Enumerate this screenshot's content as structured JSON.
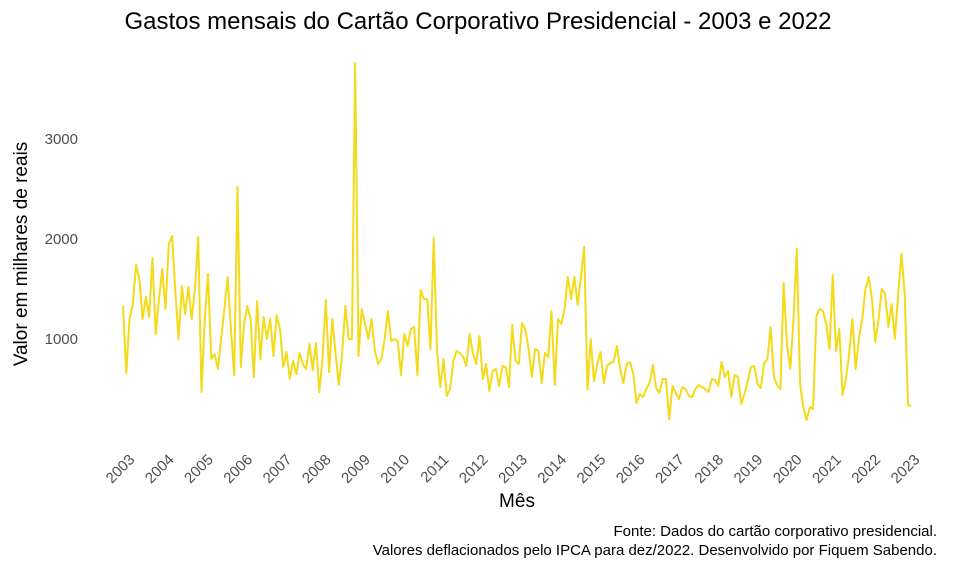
{
  "chart_data": {
    "type": "line",
    "title": "Gastos mensais do Cartão Corporativo Presidencial - 2003 e 2022",
    "xlabel": "Mês",
    "ylabel": "Valor em milhares de reais",
    "caption": [
      "Fonte: Dados do cartão corporativo presidencial.",
      "Valores deflacionados pelo IPCA para dez/2022. Desenvolvido por Fiquem Sabendo."
    ],
    "x_start": 2003,
    "x_step_months": 1,
    "xlim": [
      2003,
      2023
    ],
    "ylim": [
      0,
      3800
    ],
    "x_ticks": [
      "2003",
      "2004",
      "2005",
      "2006",
      "2007",
      "2008",
      "2009",
      "2010",
      "2011",
      "2012",
      "2013",
      "2014",
      "2015",
      "2016",
      "2017",
      "2018",
      "2019",
      "2020",
      "2021",
      "2022",
      "2023"
    ],
    "y_ticks": [
      "1000",
      "2000",
      "3000"
    ],
    "grid": false,
    "line_color": "#F5DA1A",
    "values": [
      1330,
      660,
      1200,
      1350,
      1740,
      1600,
      1200,
      1420,
      1220,
      1810,
      1050,
      1400,
      1700,
      1300,
      1950,
      2030,
      1480,
      1000,
      1530,
      1250,
      1520,
      1200,
      1500,
      2020,
      470,
      1200,
      1650,
      800,
      850,
      700,
      1000,
      1300,
      1620,
      1100,
      640,
      2520,
      720,
      1150,
      1330,
      1200,
      620,
      1380,
      800,
      1220,
      1000,
      1200,
      830,
      1240,
      1100,
      720,
      870,
      600,
      780,
      650,
      860,
      750,
      700,
      950,
      690,
      960,
      470,
      800,
      1390,
      670,
      1200,
      850,
      540,
      850,
      1330,
      1000,
      1000,
      3760,
      830,
      1300,
      1150,
      1000,
      1200,
      880,
      750,
      800,
      1000,
      1280,
      980,
      1000,
      980,
      640,
      1050,
      930,
      1100,
      1120,
      640,
      1490,
      1400,
      1400,
      900,
      2010,
      880,
      520,
      800,
      430,
      500,
      780,
      880,
      860,
      820,
      730,
      1050,
      850,
      750,
      1030,
      600,
      750,
      480,
      680,
      700,
      530,
      730,
      720,
      520,
      1140,
      780,
      750,
      1160,
      1100,
      900,
      620,
      900,
      880,
      560,
      860,
      820,
      1280,
      540,
      1200,
      1150,
      1300,
      1620,
      1400,
      1620,
      1340,
      1620,
      1920,
      490,
      1000,
      580,
      750,
      870,
      560,
      730,
      760,
      770,
      930,
      700,
      560,
      750,
      770,
      650,
      360,
      450,
      420,
      500,
      560,
      740,
      510,
      460,
      600,
      600,
      200,
      530,
      460,
      400,
      520,
      500,
      430,
      420,
      500,
      540,
      520,
      500,
      470,
      600,
      590,
      530,
      770,
      620,
      680,
      420,
      640,
      620,
      350,
      450,
      580,
      720,
      730,
      550,
      510,
      760,
      800,
      1120,
      620,
      540,
      500,
      1560,
      940,
      700,
      1200,
      1900,
      550,
      320,
      190,
      320,
      300,
      1230,
      1300,
      1280,
      1150,
      900,
      1640,
      880,
      1100,
      440,
      600,
      850,
      1200,
      700,
      1000,
      1200,
      1500,
      1620,
      1400,
      970,
      1200,
      1500,
      1450,
      1120,
      1350,
      1000,
      1450,
      1850,
      1450,
      340,
      330
    ]
  }
}
